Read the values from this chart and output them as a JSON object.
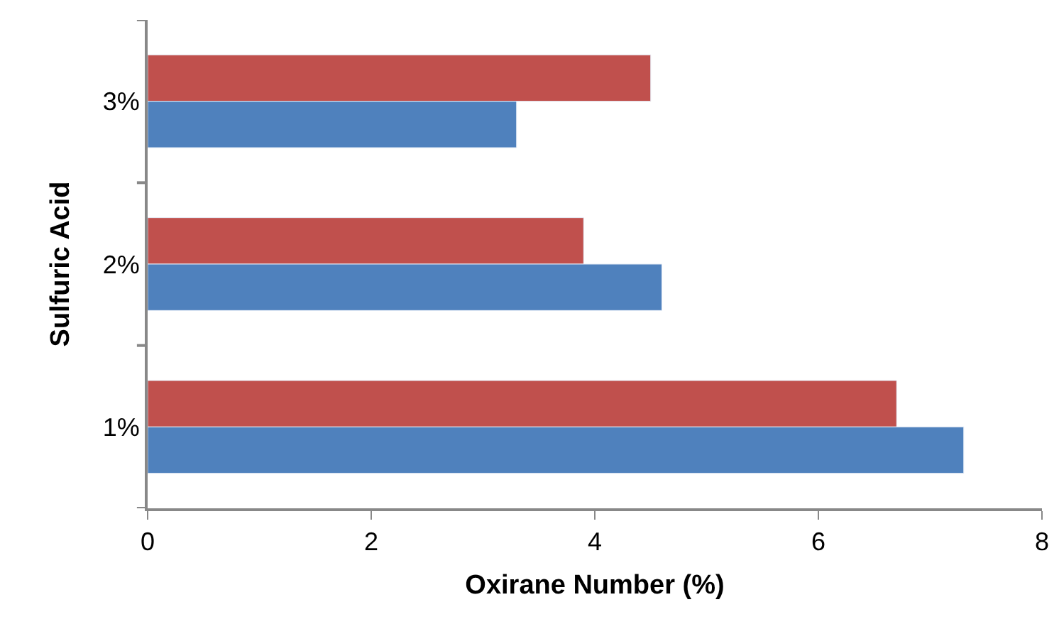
{
  "chart_data": {
    "type": "bar",
    "orientation": "horizontal",
    "xlabel": "Oxirane Number (%)",
    "ylabel": "Sulfuric Acid",
    "categories": [
      "3%",
      "2%",
      "1%"
    ],
    "series": [
      {
        "color": "#4f81bd",
        "values": [
          3.3,
          4.6,
          7.3
        ]
      },
      {
        "color": "#c0504d",
        "values": [
          4.5,
          3.9,
          6.7
        ]
      }
    ],
    "xlim": [
      0,
      8
    ],
    "xticks": [
      0,
      2,
      4,
      6,
      8
    ]
  }
}
